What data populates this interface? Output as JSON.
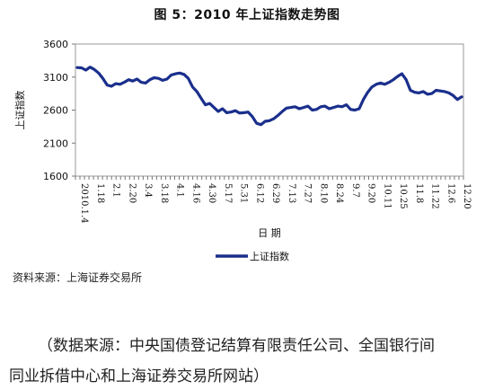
{
  "chart_data": {
    "type": "line",
    "title": "图 5：2010 年上证指数走势图",
    "xlabel": "日 期",
    "ylabel": "上证指数",
    "ylim": [
      1600,
      3600
    ],
    "yticks": [
      1600,
      2100,
      2600,
      3100,
      3600
    ],
    "xtick_labels": [
      "2010.1.4",
      "1.18",
      "2.1",
      "2.20",
      "3.4",
      "3.18",
      "4.1",
      "4.16",
      "4.30",
      "5.17",
      "5.31",
      "6.12",
      "6.29",
      "7.13",
      "7.27",
      "8.10",
      "8.24",
      "9.7",
      "9.20",
      "10.11",
      "10.25",
      "11.8",
      "11.22",
      "12.6",
      "12.20"
    ],
    "legend_position": "bottom-center",
    "grid": false,
    "series": [
      {
        "name": "上证指数",
        "color": "#1a2f8c",
        "values": [
          3243,
          3240,
          3205,
          3250,
          3215,
          3160,
          3080,
          2980,
          2960,
          3000,
          2990,
          3020,
          3060,
          3040,
          3070,
          3020,
          3010,
          3060,
          3090,
          3080,
          3050,
          3070,
          3130,
          3150,
          3160,
          3140,
          3080,
          2950,
          2880,
          2780,
          2680,
          2700,
          2640,
          2580,
          2620,
          2560,
          2570,
          2590,
          2555,
          2560,
          2570,
          2500,
          2400,
          2380,
          2430,
          2440,
          2470,
          2520,
          2580,
          2630,
          2640,
          2650,
          2620,
          2640,
          2660,
          2600,
          2610,
          2650,
          2660,
          2620,
          2640,
          2660,
          2650,
          2680,
          2610,
          2600,
          2620,
          2760,
          2870,
          2950,
          2990,
          3010,
          2990,
          3020,
          3060,
          3110,
          3150,
          3060,
          2900,
          2870,
          2860,
          2880,
          2840,
          2850,
          2900,
          2890,
          2880,
          2860,
          2820,
          2760,
          2800
        ]
      }
    ]
  },
  "source_note": "资料来源：上海证券交易所",
  "footnote_line1": "（数据来源：中央国债登记结算有限责任公司、全国银行间",
  "footnote_line2": "同业拆借中心和上海证券交易所网站）"
}
